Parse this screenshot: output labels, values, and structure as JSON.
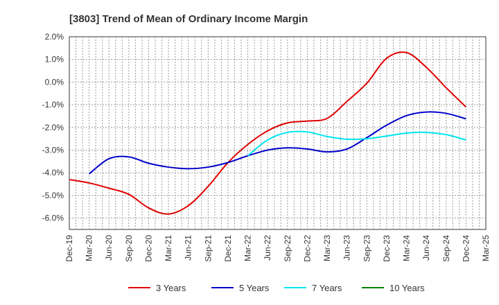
{
  "chart_data": {
    "type": "line",
    "title": "[3803]  Trend of Mean of Ordinary Income Margin",
    "xlabel": "",
    "ylabel": "",
    "x_ticks": [
      "Dec-19",
      "Mar-20",
      "Jun-20",
      "Sep-20",
      "Dec-20",
      "Mar-21",
      "Jun-21",
      "Sep-21",
      "Dec-21",
      "Mar-22",
      "Jun-22",
      "Sep-22",
      "Dec-22",
      "Mar-23",
      "Jun-23",
      "Sep-23",
      "Dec-23",
      "Mar-24",
      "Jun-24",
      "Sep-24",
      "Dec-24",
      "Mar-25"
    ],
    "y_ticks": [
      "2.0%",
      "1.0%",
      "0.0%",
      "-1.0%",
      "-2.0%",
      "-3.0%",
      "-4.0%",
      "-5.0%",
      "-6.0%"
    ],
    "y_tick_values": [
      2.0,
      1.0,
      0.0,
      -1.0,
      -2.0,
      -3.0,
      -4.0,
      -5.0,
      -6.0
    ],
    "ylim": [
      -6.5,
      2.0
    ],
    "grid": true,
    "legend_position": "bottom",
    "series": [
      {
        "name": "3 Years",
        "color": "#e00000",
        "points": [
          [
            "Dec-19",
            -4.3
          ],
          [
            "Mar-20",
            -4.45
          ],
          [
            "Jun-20",
            -4.68
          ],
          [
            "Sep-20",
            -4.95
          ],
          [
            "Dec-20",
            -5.55
          ],
          [
            "Mar-21",
            -5.82
          ],
          [
            "Jun-21",
            -5.45
          ],
          [
            "Sep-21",
            -4.6
          ],
          [
            "Dec-21",
            -3.55
          ],
          [
            "Mar-22",
            -2.75
          ],
          [
            "Jun-22",
            -2.15
          ],
          [
            "Sep-22",
            -1.8
          ],
          [
            "Dec-22",
            -1.72
          ],
          [
            "Mar-23",
            -1.6
          ],
          [
            "Jun-23",
            -0.85
          ],
          [
            "Sep-23",
            -0.05
          ],
          [
            "Dec-23",
            1.05
          ],
          [
            "Mar-24",
            1.3
          ],
          [
            "Jun-24",
            0.65
          ],
          [
            "Sep-24",
            -0.25
          ],
          [
            "Dec-24",
            -1.1
          ]
        ]
      },
      {
        "name": "5 Years",
        "color": "#0000cc",
        "points": [
          [
            "Mar-20",
            -4.05
          ],
          [
            "Jun-20",
            -3.38
          ],
          [
            "Sep-20",
            -3.3
          ],
          [
            "Dec-20",
            -3.58
          ],
          [
            "Mar-21",
            -3.75
          ],
          [
            "Jun-21",
            -3.82
          ],
          [
            "Sep-21",
            -3.75
          ],
          [
            "Dec-21",
            -3.55
          ],
          [
            "Mar-22",
            -3.25
          ],
          [
            "Jun-22",
            -3.0
          ],
          [
            "Sep-22",
            -2.9
          ],
          [
            "Dec-22",
            -2.95
          ],
          [
            "Mar-23",
            -3.08
          ],
          [
            "Jun-23",
            -2.95
          ],
          [
            "Sep-23",
            -2.45
          ],
          [
            "Dec-23",
            -1.9
          ],
          [
            "Mar-24",
            -1.48
          ],
          [
            "Jun-24",
            -1.32
          ],
          [
            "Sep-24",
            -1.38
          ],
          [
            "Dec-24",
            -1.62
          ]
        ]
      },
      {
        "name": "7 Years",
        "color": "#00e5ee",
        "points": [
          [
            "Mar-22",
            -3.25
          ],
          [
            "Jun-22",
            -2.55
          ],
          [
            "Sep-22",
            -2.22
          ],
          [
            "Dec-22",
            -2.2
          ],
          [
            "Mar-23",
            -2.4
          ],
          [
            "Jun-23",
            -2.52
          ],
          [
            "Sep-23",
            -2.5
          ],
          [
            "Dec-23",
            -2.38
          ],
          [
            "Mar-24",
            -2.25
          ],
          [
            "Jun-24",
            -2.22
          ],
          [
            "Sep-24",
            -2.32
          ],
          [
            "Dec-24",
            -2.55
          ]
        ]
      },
      {
        "name": "10 Years",
        "color": "#008000",
        "points": []
      }
    ]
  }
}
